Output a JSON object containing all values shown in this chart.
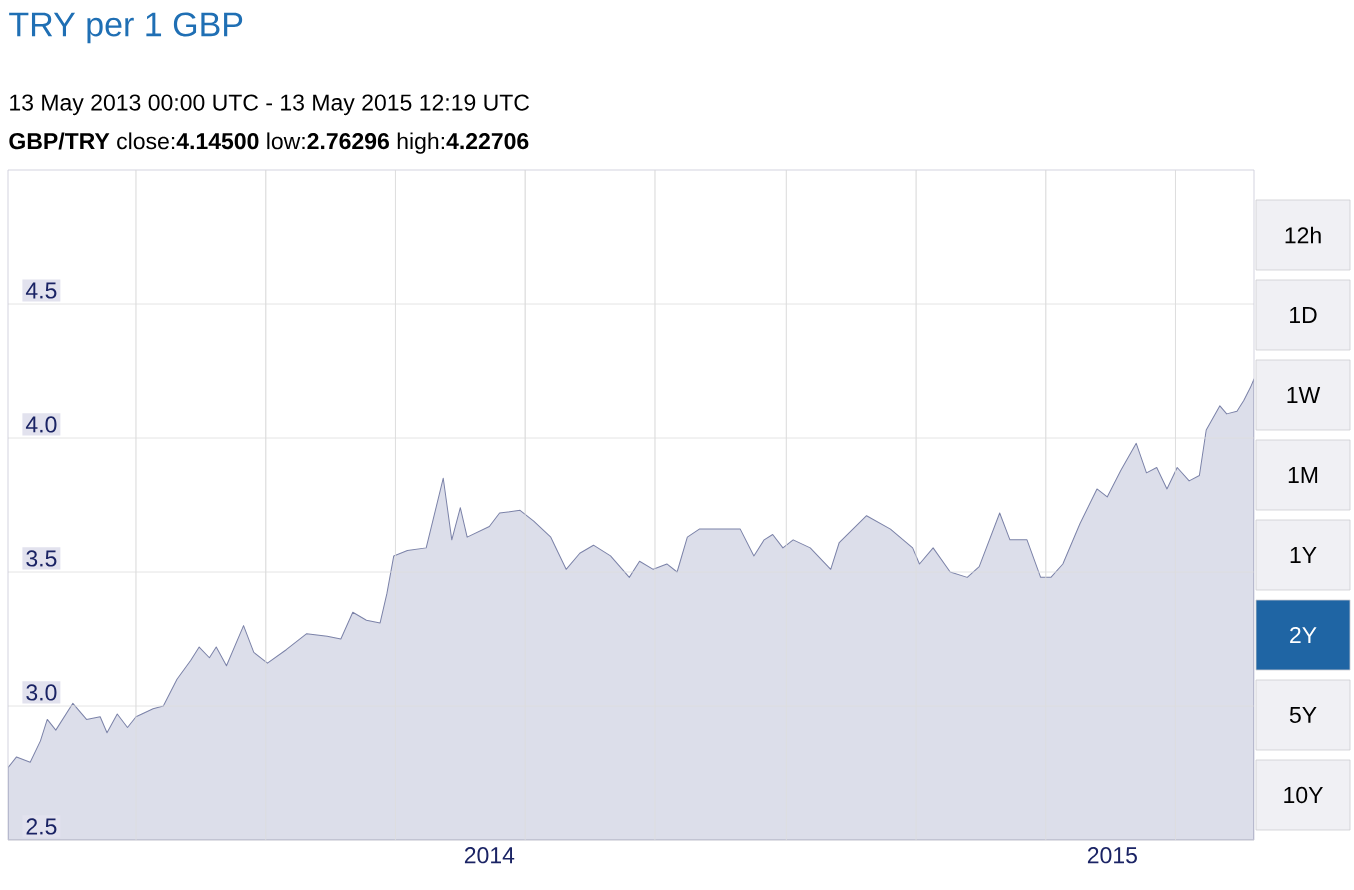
{
  "chart_data": {
    "type": "area",
    "title": "TRY per 1 GBP",
    "subtitle": "13 May 2013 00:00 UTC - 13 May 2015 12:19 UTC",
    "annotations": [
      "**GBP/TRY** close:**4.14500** low:**2.76296** high:**4.22706**",
      "12h",
      "1D",
      "1W",
      "1M",
      "1Y",
      "2Y",
      "5Y",
      "10Y"
    ],
    "x": [
      "2013-05-13",
      "2013-05-18",
      "2013-05-26",
      "2013-06-01",
      "2013-06-05",
      "2013-06-10",
      "2013-06-20",
      "2013-06-28",
      "2013-07-06",
      "2013-07-10",
      "2013-07-16",
      "2013-07-22",
      "2013-07-27",
      "2013-08-06",
      "2013-08-12",
      "2013-08-20",
      "2013-08-28",
      "2013-09-02",
      "2013-09-08",
      "2013-09-12",
      "2013-09-18",
      "2013-09-28",
      "2013-10-04",
      "2013-10-12",
      "2013-10-23",
      "2013-11-04",
      "2013-11-16",
      "2013-11-24",
      "2013-12-01",
      "2013-12-09",
      "2013-12-17",
      "2013-12-21",
      "2013-12-25",
      "2014-01-02",
      "2014-01-13",
      "2014-01-23",
      "2014-01-28",
      "2014-02-02",
      "2014-02-06",
      "2014-02-19",
      "2014-02-25",
      "2014-03-09",
      "2014-03-17",
      "2014-03-27",
      "2014-04-05",
      "2014-04-13",
      "2014-04-21",
      "2014-05-01",
      "2014-05-12",
      "2014-05-18",
      "2014-05-26",
      "2014-06-03",
      "2014-06-09",
      "2014-06-15",
      "2014-06-22",
      "2014-07-04",
      "2014-07-16",
      "2014-07-24",
      "2014-07-30",
      "2014-08-04",
      "2014-08-10",
      "2014-08-16",
      "2014-08-26",
      "2014-09-07",
      "2014-09-12",
      "2014-09-28",
      "2014-10-12",
      "2014-10-25",
      "2014-10-29",
      "2014-11-06",
      "2014-11-16",
      "2014-11-26",
      "2014-12-03",
      "2014-12-15",
      "2014-12-21",
      "2014-12-31",
      "2015-01-08",
      "2015-01-14",
      "2015-01-21",
      "2015-01-31",
      "2015-02-10",
      "2015-02-16",
      "2015-02-24",
      "2015-03-05",
      "2015-03-11",
      "2015-03-17",
      "2015-03-23",
      "2015-03-29",
      "2015-04-05",
      "2015-04-11",
      "2015-04-15",
      "2015-04-23",
      "2015-04-27",
      "2015-05-03",
      "2015-05-07",
      "2015-05-11",
      "2015-05-13"
    ],
    "series": [
      {
        "color": "#7b82a8",
        "values": [
          2.77,
          2.81,
          2.79,
          2.87,
          2.95,
          2.91,
          3.01,
          2.95,
          2.96,
          2.9,
          2.97,
          2.92,
          2.96,
          2.99,
          3.0,
          3.1,
          3.17,
          3.22,
          3.18,
          3.22,
          3.15,
          3.3,
          3.2,
          3.16,
          3.21,
          3.27,
          3.26,
          3.25,
          3.35,
          3.32,
          3.31,
          3.42,
          3.56,
          3.58,
          3.59,
          3.85,
          3.62,
          3.74,
          3.63,
          3.67,
          3.72,
          3.73,
          3.69,
          3.63,
          3.51,
          3.57,
          3.6,
          3.56,
          3.48,
          3.54,
          3.51,
          3.53,
          3.5,
          3.63,
          3.66,
          3.66,
          3.66,
          3.56,
          3.62,
          3.64,
          3.59,
          3.62,
          3.59,
          3.51,
          3.61,
          3.71,
          3.66,
          3.59,
          3.53,
          3.59,
          3.5,
          3.48,
          3.52,
          3.72,
          3.62,
          3.62,
          3.48,
          3.48,
          3.53,
          3.68,
          3.81,
          3.78,
          3.88,
          3.98,
          3.87,
          3.89,
          3.81,
          3.89,
          3.84,
          3.86,
          4.03,
          4.12,
          4.09,
          4.1,
          4.14,
          4.19,
          4.22
        ]
      }
    ],
    "xlim": [
      "2013-05-13",
      "2015-05-13"
    ],
    "xticks": [
      {
        "value": "2013-07-27",
        "label": null
      },
      {
        "value": "2013-10-11",
        "label": null
      },
      {
        "value": "2013-12-26",
        "label": null
      },
      {
        "value": "2014-02-19",
        "label": "2014"
      },
      {
        "value": "2014-03-12",
        "label": null
      },
      {
        "value": "2014-05-27",
        "label": null
      },
      {
        "value": "2014-08-12",
        "label": null
      },
      {
        "value": "2014-10-27",
        "label": null
      },
      {
        "value": "2015-01-11",
        "label": null
      },
      {
        "value": "2015-02-19",
        "label": "2015"
      },
      {
        "value": "2015-03-28",
        "label": null
      }
    ],
    "ylim": [
      2.5,
      5.0
    ],
    "yticks": [
      2.5,
      {
        "value": 3.0,
        "label": "3.0"
      },
      3.5,
      {
        "value": 4.0,
        "label": "4.0"
      },
      4.5
    ],
    "grid": true
  }
}
